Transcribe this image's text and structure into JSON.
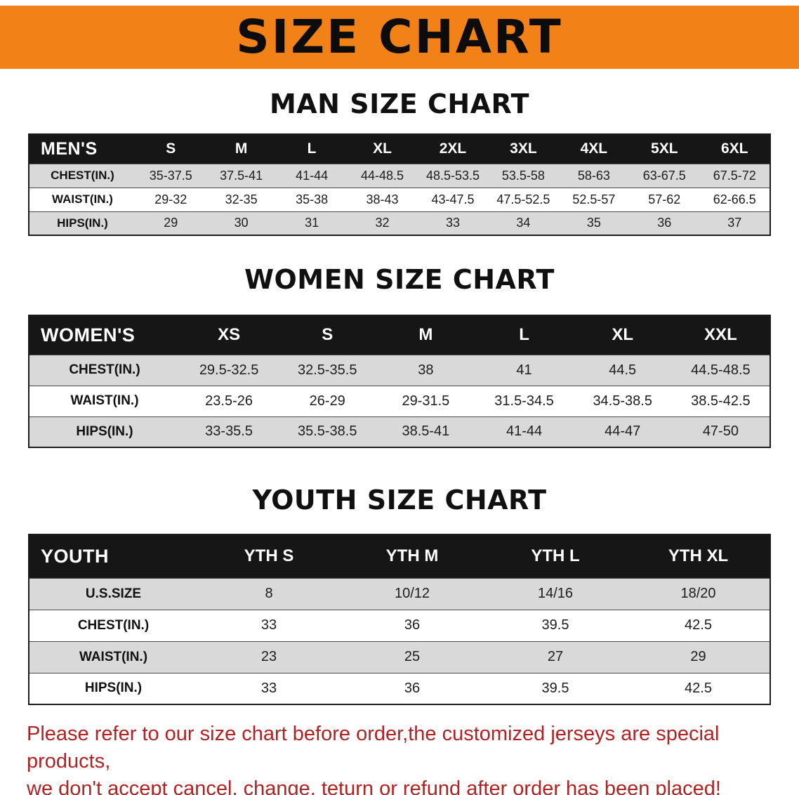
{
  "colors": {
    "banner_bg": "#F28118",
    "header_bg": "#161616",
    "alt_row_bg": "#D9D9D9",
    "disclaimer_text": "#B22222"
  },
  "banner": {
    "title": "SIZE CHART"
  },
  "men": {
    "heading": "MAN SIZE CHART",
    "header": [
      "MEN'S",
      "S",
      "M",
      "L",
      "XL",
      "2XL",
      "3XL",
      "4XL",
      "5XL",
      "6XL"
    ],
    "rows": [
      {
        "label": "CHEST(IN.)",
        "values": [
          "35-37.5",
          "37.5-41",
          "41-44",
          "44-48.5",
          "48.5-53.5",
          "53.5-58",
          "58-63",
          "63-67.5",
          "67.5-72"
        ]
      },
      {
        "label": "WAIST(IN.)",
        "values": [
          "29-32",
          "32-35",
          "35-38",
          "38-43",
          "43-47.5",
          "47.5-52.5",
          "52.5-57",
          "57-62",
          "62-66.5"
        ]
      },
      {
        "label": "HIPS(IN.)",
        "values": [
          "29",
          "30",
          "31",
          "32",
          "33",
          "34",
          "35",
          "36",
          "37"
        ]
      }
    ]
  },
  "women": {
    "heading": "WOMEN SIZE CHART",
    "header": [
      "WOMEN'S",
      "XS",
      "S",
      "M",
      "L",
      "XL",
      "XXL"
    ],
    "rows": [
      {
        "label": "CHEST(IN.)",
        "values": [
          "29.5-32.5",
          "32.5-35.5",
          "38",
          "41",
          "44.5",
          "44.5-48.5"
        ]
      },
      {
        "label": "WAIST(IN.)",
        "values": [
          "23.5-26",
          "26-29",
          "29-31.5",
          "31.5-34.5",
          "34.5-38.5",
          "38.5-42.5"
        ]
      },
      {
        "label": "HIPS(IN.)",
        "values": [
          "33-35.5",
          "35.5-38.5",
          "38.5-41",
          "41-44",
          "44-47",
          "47-50"
        ]
      }
    ]
  },
  "youth": {
    "heading": "YOUTH SIZE CHART",
    "header": [
      "YOUTH",
      "YTH S",
      "YTH M",
      "YTH L",
      "YTH XL"
    ],
    "rows": [
      {
        "label": "U.S.SIZE",
        "values": [
          "8",
          "10/12",
          "14/16",
          "18/20"
        ]
      },
      {
        "label": "CHEST(IN.)",
        "values": [
          "33",
          "36",
          "39.5",
          "42.5"
        ]
      },
      {
        "label": "WAIST(IN.)",
        "values": [
          "23",
          "25",
          "27",
          "29"
        ]
      },
      {
        "label": "HIPS(IN.)",
        "values": [
          "33",
          "36",
          "39.5",
          "42.5"
        ]
      }
    ]
  },
  "disclaimer": {
    "line1": "Please refer to our size chart before order,the customized jerseys are special products,",
    "line2": "we don't accept cancel, change, teturn or refund after order has been placed!"
  }
}
